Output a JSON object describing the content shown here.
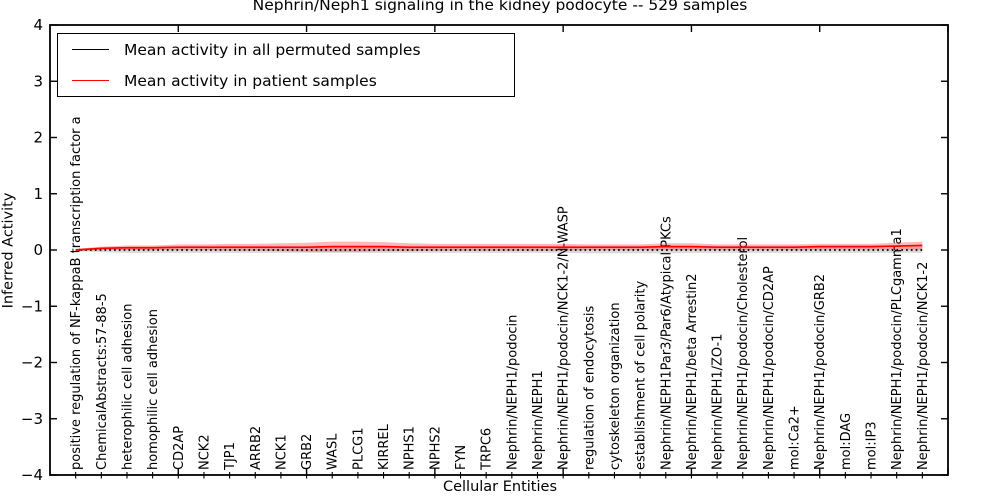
{
  "figure": {
    "title": "Nephrin/Neph1 signaling in the kidney podocyte -- 529 samples",
    "xlabel": "Cellular Entities",
    "ylabel": "Inferred Activity"
  },
  "legend": {
    "entries": [
      {
        "label": "Mean activity in all permuted samples",
        "color": "#000000"
      },
      {
        "label": "Mean activity in patient samples",
        "color": "#ff0000"
      }
    ]
  },
  "chart_data": {
    "type": "line",
    "title": "Nephrin/Neph1 signaling in the kidney podocyte -- 529 samples",
    "xlabel": "Cellular Entities",
    "ylabel": "Inferred Activity",
    "ylim": [
      -4,
      4
    ],
    "ytick_labels": [
      "4",
      "3",
      "2",
      "1",
      "0",
      "−1",
      "−2",
      "−3",
      "−4"
    ],
    "ytick_values": [
      4,
      3,
      2,
      1,
      0,
      -1,
      -2,
      -3,
      -4
    ],
    "xtick_major_positions": [
      5,
      10,
      15,
      20,
      25,
      30,
      35
    ],
    "grid": false,
    "legend_position": "upper left",
    "categories": [
      "positive regulation of NF-kappaB transcription factor a",
      "ChemicalAbstracts:57-88-5",
      "heterophilic cell adhesion",
      "homophilic cell adhesion",
      "CD2AP",
      "NCK2",
      "TJP1",
      "ARRB2",
      "NCK1",
      "GRB2",
      "WASL",
      "PLCG1",
      "KIRREL",
      "NPHS1",
      "NPHS2",
      "FYN",
      "TRPC6",
      "Nephrin/NEPH1/podocin",
      "Nephrin/NEPH1",
      "Nephrin/NEPH1/podocin/NCK1-2/N-WASP",
      "regulation of endocytosis",
      "cytoskeleton organization",
      "establishment of cell polarity",
      "Nephrin/NEPH1Par3/Par6/Atypical PKCs",
      "Nephrin/NEPH1/beta Arrestin2",
      "Nephrin/NEPH1/ZO-1",
      "Nephrin/NEPH1/podocin/Cholesterol",
      "Nephrin/NEPH1/podocin/CD2AP",
      "mol:Ca2+",
      "Nephrin/NEPH1/podocin/GRB2",
      "mol:DAG",
      "mol:IP3",
      "Nephrin/NEPH1/podocin/PLCgamma1",
      "Nephrin/NEPH1/podocin/NCK1-2"
    ],
    "series": [
      {
        "name": "Mean activity in all permuted samples",
        "color": "#000000",
        "style": "dotted",
        "values": [
          0.0,
          0.0,
          0.0,
          0.0,
          0.0,
          0.0,
          0.0,
          0.0,
          0.0,
          0.0,
          0.0,
          0.0,
          0.0,
          0.0,
          0.0,
          0.0,
          0.0,
          0.0,
          0.0,
          0.0,
          0.0,
          0.0,
          0.0,
          0.0,
          0.0,
          0.0,
          0.0,
          0.0,
          0.0,
          0.0,
          0.0,
          0.0,
          0.0,
          0.0
        ],
        "band_halfwidth": [
          0.02,
          0.04,
          0.05,
          0.05,
          0.05,
          0.05,
          0.05,
          0.05,
          0.05,
          0.05,
          0.05,
          0.05,
          0.05,
          0.05,
          0.05,
          0.05,
          0.05,
          0.05,
          0.05,
          0.05,
          0.06,
          0.06,
          0.06,
          0.06,
          0.05,
          0.05,
          0.05,
          0.05,
          0.05,
          0.05,
          0.05,
          0.05,
          0.05,
          0.05
        ]
      },
      {
        "name": "Mean activity in patient samples",
        "color": "#ff0000",
        "style": "solid",
        "values": [
          0.0,
          0.03,
          0.04,
          0.04,
          0.05,
          0.05,
          0.05,
          0.05,
          0.05,
          0.05,
          0.06,
          0.06,
          0.06,
          0.05,
          0.05,
          0.05,
          0.05,
          0.05,
          0.05,
          0.05,
          0.05,
          0.05,
          0.05,
          0.06,
          0.06,
          0.05,
          0.05,
          0.05,
          0.05,
          0.06,
          0.06,
          0.06,
          0.07,
          0.08
        ],
        "band_halfwidth": [
          0.02,
          0.03,
          0.04,
          0.04,
          0.05,
          0.05,
          0.06,
          0.06,
          0.07,
          0.08,
          0.09,
          0.09,
          0.08,
          0.07,
          0.06,
          0.06,
          0.06,
          0.06,
          0.06,
          0.06,
          0.05,
          0.05,
          0.05,
          0.06,
          0.06,
          0.05,
          0.05,
          0.05,
          0.05,
          0.05,
          0.05,
          0.05,
          0.06,
          0.07
        ]
      }
    ]
  }
}
